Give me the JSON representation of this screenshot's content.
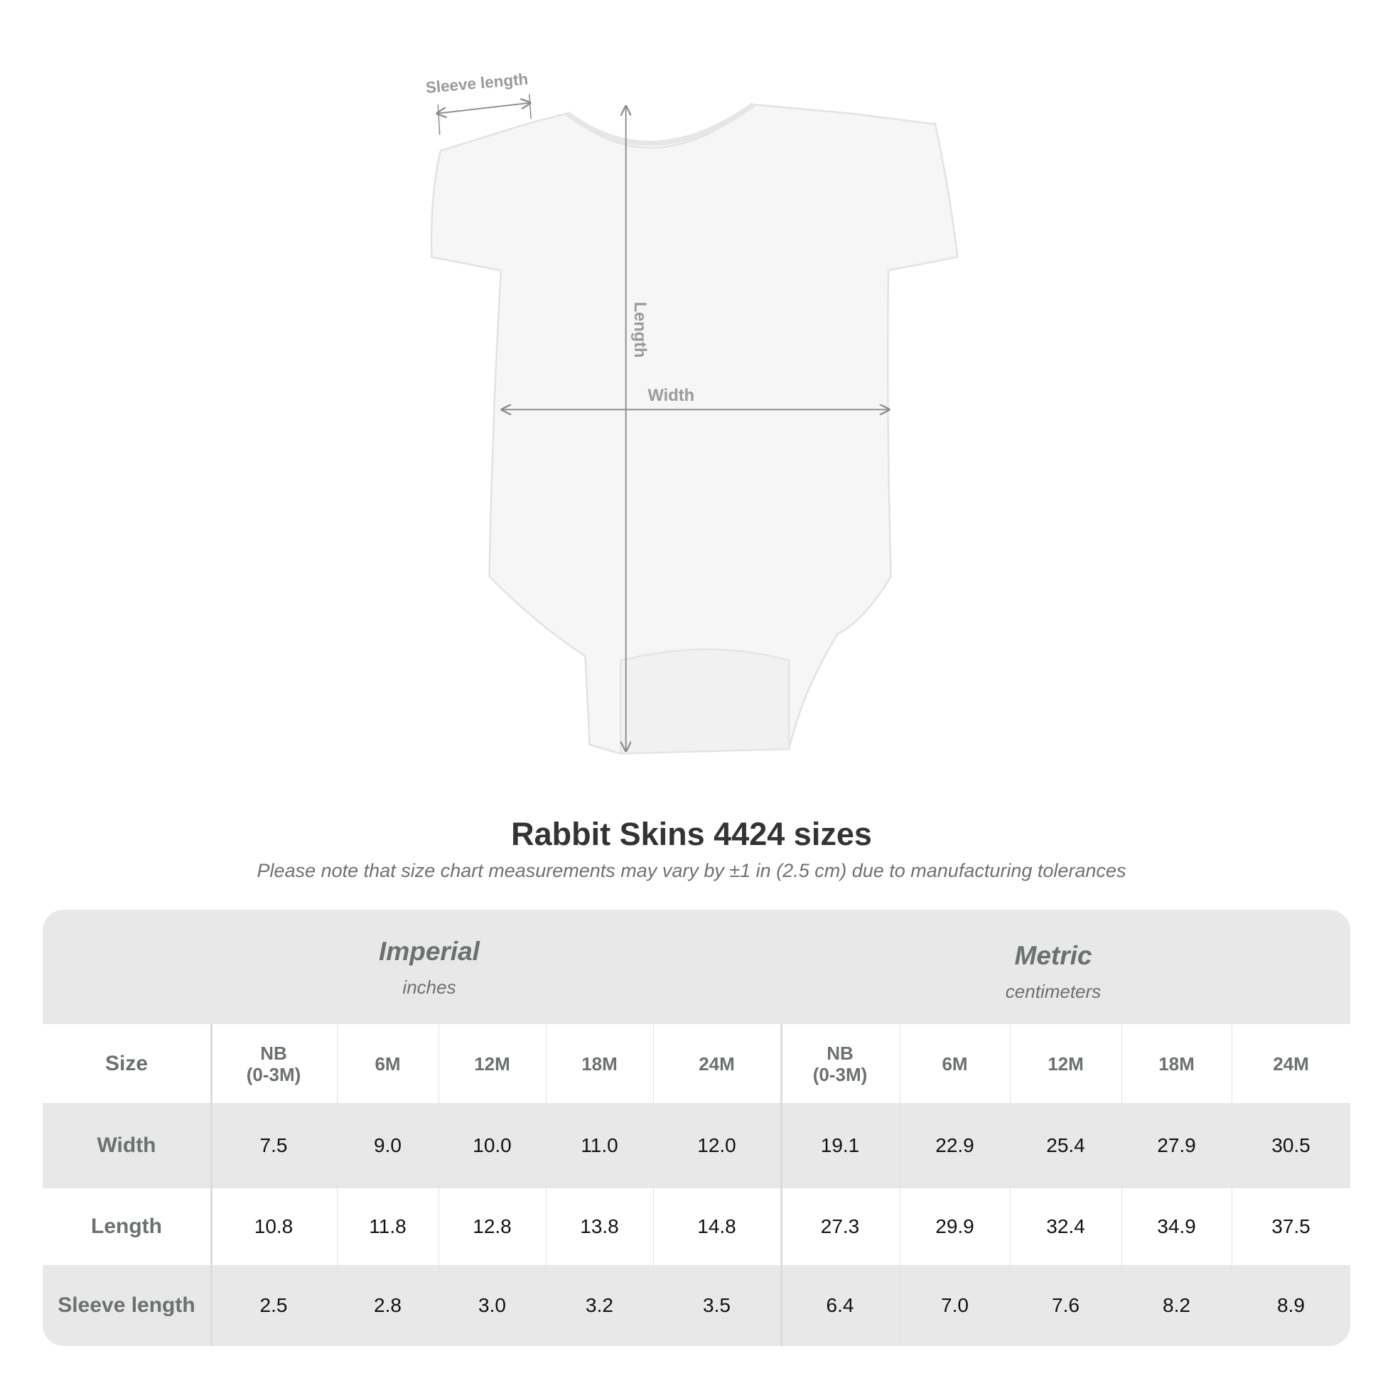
{
  "diagram": {
    "labels": {
      "sleeve": "Sleeve length",
      "length": "Length",
      "width": "Width"
    }
  },
  "title": "Rabbit Skins 4424 sizes",
  "subtitle": "Please note that size chart measurements may vary by ±1 in (2.5 cm) due to manufacturing tolerances",
  "table": {
    "imperial": {
      "name": "Imperial",
      "unit": "inches"
    },
    "metric": {
      "name": "Metric",
      "unit": "centimeters"
    },
    "size_label": "Size",
    "sizes": [
      "NB\n(0-3M)",
      "6M",
      "12M",
      "18M",
      "24M",
      "NB\n(0-3M)",
      "6M",
      "12M",
      "18M",
      "24M"
    ],
    "rows": [
      {
        "label": "Width",
        "values": [
          "7.5",
          "9.0",
          "10.0",
          "11.0",
          "12.0",
          "19.1",
          "22.9",
          "25.4",
          "27.9",
          "30.5"
        ]
      },
      {
        "label": "Length",
        "values": [
          "10.8",
          "11.8",
          "12.8",
          "13.8",
          "14.8",
          "27.3",
          "29.9",
          "32.4",
          "34.9",
          "37.5"
        ]
      },
      {
        "label": "Sleeve length",
        "values": [
          "2.5",
          "2.8",
          "3.0",
          "3.2",
          "3.5",
          "6.4",
          "7.0",
          "7.6",
          "8.2",
          "8.9"
        ]
      }
    ]
  },
  "colors": {
    "band": "#e8e8e8",
    "label": "#6b7070",
    "arrow": "#8a8a8a"
  }
}
